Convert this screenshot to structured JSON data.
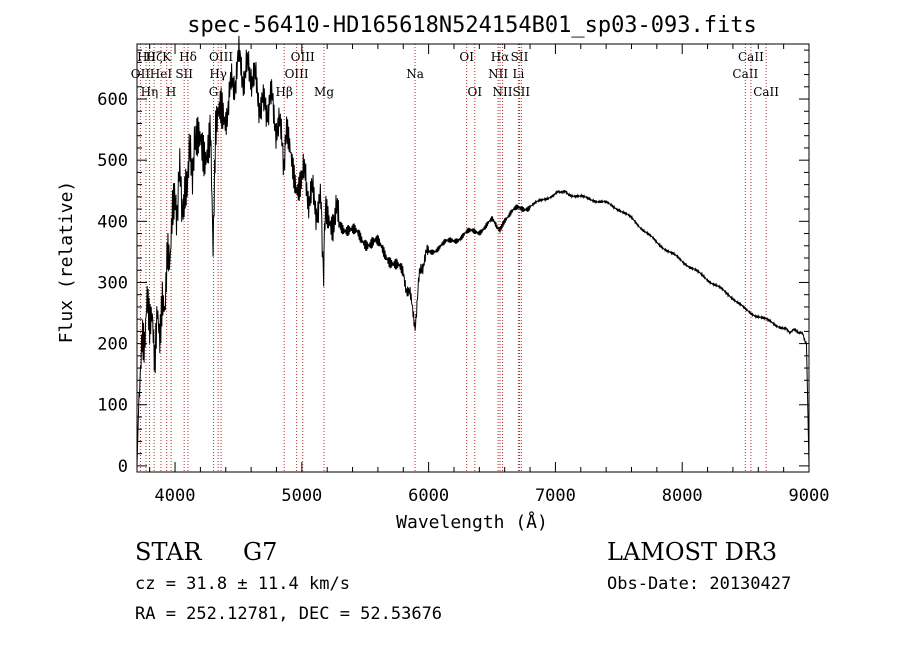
{
  "chart_data": {
    "type": "line",
    "title": "spec-56410-HD165618N524154B01_sp03-093.fits",
    "xlabel": "Wavelength (Å)",
    "ylabel": "Flux (relative)",
    "xlim": [
      3700,
      9000
    ],
    "ylim": [
      -10,
      690
    ],
    "xticks": [
      4000,
      5000,
      6000,
      7000,
      8000,
      9000
    ],
    "yticks": [
      0,
      100,
      200,
      300,
      400,
      500,
      600
    ],
    "grid": false,
    "line_color": "#000000",
    "marker_color": "#b03030",
    "series": [
      {
        "name": "flux",
        "x": [
          3700,
          3720,
          3740,
          3760,
          3780,
          3800,
          3820,
          3840,
          3860,
          3880,
          3900,
          3920,
          3940,
          3960,
          3980,
          4000,
          4030,
          4060,
          4080,
          4100,
          4130,
          4160,
          4200,
          4240,
          4280,
          4300,
          4320,
          4340,
          4360,
          4400,
          4450,
          4500,
          4550,
          4600,
          4650,
          4700,
          4750,
          4800,
          4850,
          4861,
          4880,
          4920,
          4960,
          5000,
          5050,
          5100,
          5150,
          5172,
          5190,
          5250,
          5300,
          5400,
          5500,
          5600,
          5700,
          5800,
          5850,
          5893,
          5920,
          5950,
          6000,
          6100,
          6200,
          6300,
          6400,
          6500,
          6563,
          6600,
          6700,
          6800,
          6900,
          7000,
          7050,
          7100,
          7200,
          7300,
          7400,
          7500,
          7600,
          7700,
          7800,
          7900,
          8000,
          8100,
          8200,
          8300,
          8400,
          8500,
          8540,
          8600,
          8700,
          8800,
          8850,
          8900,
          8950,
          8980,
          9000
        ],
        "values": [
          0,
          150,
          220,
          180,
          250,
          200,
          230,
          170,
          280,
          240,
          300,
          260,
          340,
          300,
          390,
          420,
          460,
          440,
          480,
          470,
          510,
          500,
          540,
          530,
          560,
          340,
          520,
          545,
          570,
          580,
          620,
          660,
          640,
          650,
          610,
          580,
          600,
          560,
          530,
          500,
          530,
          500,
          470,
          480,
          450,
          430,
          420,
          330,
          420,
          410,
          400,
          380,
          370,
          360,
          340,
          310,
          280,
          230,
          300,
          330,
          350,
          360,
          370,
          380,
          385,
          400,
          390,
          405,
          420,
          425,
          435,
          445,
          450,
          445,
          440,
          435,
          430,
          420,
          405,
          385,
          365,
          350,
          335,
          320,
          305,
          290,
          275,
          255,
          250,
          245,
          235,
          225,
          220,
          222,
          215,
          200,
          0
        ]
      }
    ],
    "line_markers": [
      {
        "name": "OII",
        "x": 3727,
        "row": 2
      },
      {
        "name": "Hθ",
        "x": 3771,
        "row": 1
      },
      {
        "name": "Hη",
        "x": 3798,
        "row": 3
      },
      {
        "name": "Hζ",
        "x": 3835,
        "row": 1
      },
      {
        "name": "HeI",
        "x": 3889,
        "row": 2
      },
      {
        "name": "K",
        "x": 3934,
        "row": 1
      },
      {
        "name": "H",
        "x": 3969,
        "row": 3
      },
      {
        "name": "SII",
        "x": 4072,
        "row": 2
      },
      {
        "name": "Hδ",
        "x": 4102,
        "row": 1
      },
      {
        "name": "G",
        "x": 4304,
        "row": 3
      },
      {
        "name": "Hγ",
        "x": 4340,
        "row": 2
      },
      {
        "name": "OIII",
        "x": 4363,
        "row": 1
      },
      {
        "name": "Hβ",
        "x": 4861,
        "row": 3
      },
      {
        "name": "OIII",
        "x": 4959,
        "row": 2
      },
      {
        "name": "OIII",
        "x": 5007,
        "row": 1
      },
      {
        "name": "Mg",
        "x": 5175,
        "row": 3
      },
      {
        "name": "Na",
        "x": 5893,
        "row": 2
      },
      {
        "name": "OI",
        "x": 6300,
        "row": 1
      },
      {
        "name": "OI",
        "x": 6364,
        "row": 3
      },
      {
        "name": "NII",
        "x": 6548,
        "row": 2
      },
      {
        "name": "Hα",
        "x": 6563,
        "row": 1
      },
      {
        "name": "NII",
        "x": 6583,
        "row": 3
      },
      {
        "name": "Li",
        "x": 6708,
        "row": 2
      },
      {
        "name": "SII",
        "x": 6717,
        "row": 1
      },
      {
        "name": "SII",
        "x": 6731,
        "row": 3
      },
      {
        "name": "CaII",
        "x": 8498,
        "row": 2
      },
      {
        "name": "CaII",
        "x": 8542,
        "row": 1
      },
      {
        "name": "CaII",
        "x": 8662,
        "row": 3
      }
    ]
  },
  "info": {
    "object_type": "STAR",
    "subclass": "G7",
    "survey": "LAMOST DR3",
    "cz": "cz = 31.8 ± 11.4 km/s",
    "obs_date": "Obs-Date: 20130427",
    "coords": "RA = 252.12781, DEC =  52.53676"
  }
}
